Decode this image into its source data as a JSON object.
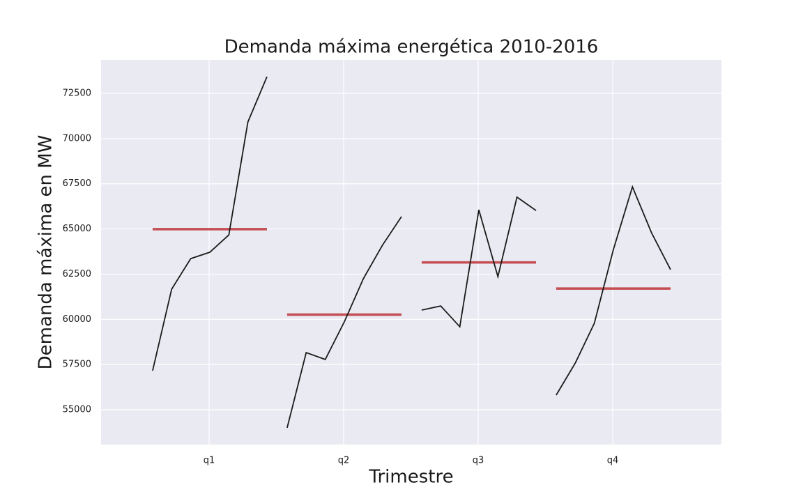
{
  "chart_data": {
    "type": "quarter_plot",
    "title": "Demanda máxima energética 2010-2016",
    "x_label": "Trimestre",
    "y_label": "Demanda máxima en MW",
    "categories": [
      "q1",
      "q2",
      "q3",
      "q4"
    ],
    "subseries": [
      {
        "values": [
          57160,
          61670,
          63360,
          63710,
          64670,
          70920,
          73420
        ],
        "mean": 64987
      },
      {
        "values": [
          54000,
          58160,
          57780,
          59860,
          62250,
          64100,
          65680
        ],
        "mean": 60261
      },
      {
        "values": [
          60510,
          60740,
          59590,
          66060,
          62360,
          66760,
          66020
        ],
        "mean": 63149
      },
      {
        "values": [
          55810,
          57580,
          59780,
          63860,
          67330,
          64790,
          62750
        ],
        "mean": 61700
      }
    ],
    "line_color": "#1a1a1a",
    "mean_color": "#c44e52",
    "ylim": [
      53073,
      74350
    ],
    "yticks": [
      55000,
      57500,
      60000,
      62500,
      65000,
      67500,
      70000,
      72500
    ],
    "grid": true
  }
}
